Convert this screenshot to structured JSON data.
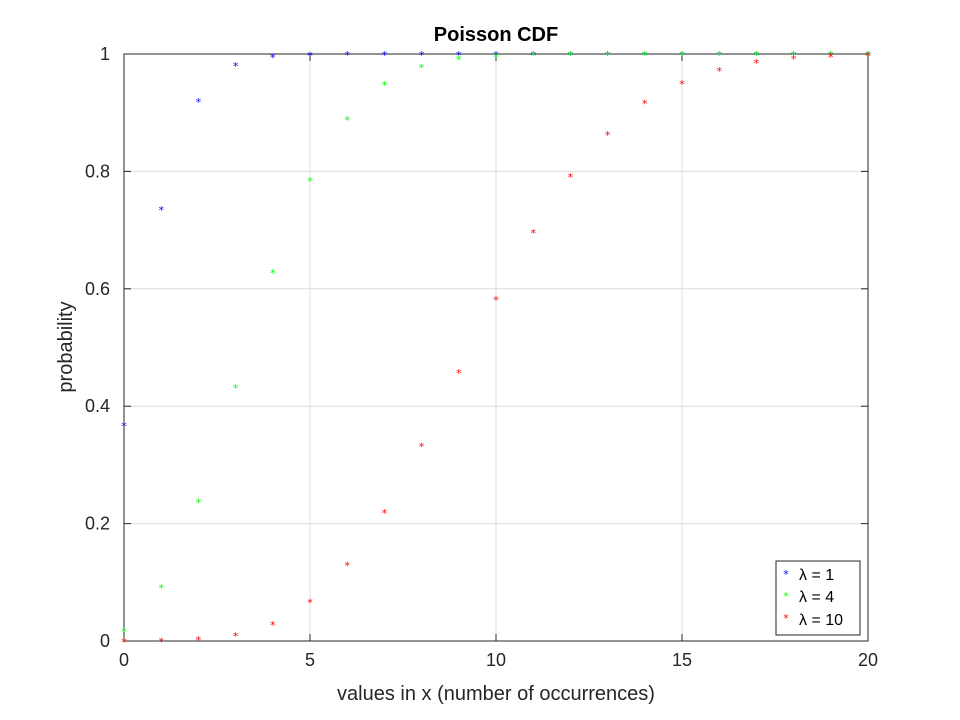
{
  "chart_data": {
    "type": "scatter",
    "title": "Poisson CDF",
    "xlabel": "values in x (number of occurrences)",
    "ylabel": "probability",
    "xlim": [
      0,
      20
    ],
    "ylim": [
      0,
      1
    ],
    "xticks": [
      0,
      5,
      10,
      15,
      20
    ],
    "yticks": [
      0,
      0.2,
      0.4,
      0.6,
      0.8,
      1
    ],
    "ytick_labels": [
      "0",
      "0.2",
      "0.4",
      "0.6",
      "0.8",
      "1"
    ],
    "grid": true,
    "legend_position": "bottom-right",
    "marker": "*",
    "x": [
      0,
      1,
      2,
      3,
      4,
      5,
      6,
      7,
      8,
      9,
      10,
      11,
      12,
      13,
      14,
      15,
      16,
      17,
      18,
      19,
      20
    ],
    "series": [
      {
        "name": "λ = 1",
        "color": "#0000ff",
        "values": [
          0.368,
          0.736,
          0.92,
          0.981,
          0.996,
          0.999,
          1.0,
          1.0,
          1.0,
          1.0,
          1.0,
          1.0,
          1.0,
          1.0,
          1.0,
          1.0,
          1.0,
          1.0,
          1.0,
          1.0,
          1.0
        ]
      },
      {
        "name": "λ = 4",
        "color": "#00ff00",
        "values": [
          0.018,
          0.092,
          0.238,
          0.433,
          0.629,
          0.785,
          0.889,
          0.949,
          0.979,
          0.992,
          0.997,
          0.999,
          1.0,
          1.0,
          1.0,
          1.0,
          1.0,
          1.0,
          1.0,
          1.0,
          1.0
        ]
      },
      {
        "name": "λ = 10",
        "color": "#ff0000",
        "values": [
          0.0,
          0.0005,
          0.003,
          0.01,
          0.029,
          0.067,
          0.13,
          0.22,
          0.333,
          0.458,
          0.583,
          0.697,
          0.792,
          0.864,
          0.917,
          0.951,
          0.973,
          0.986,
          0.993,
          0.997,
          0.998
        ]
      }
    ]
  }
}
